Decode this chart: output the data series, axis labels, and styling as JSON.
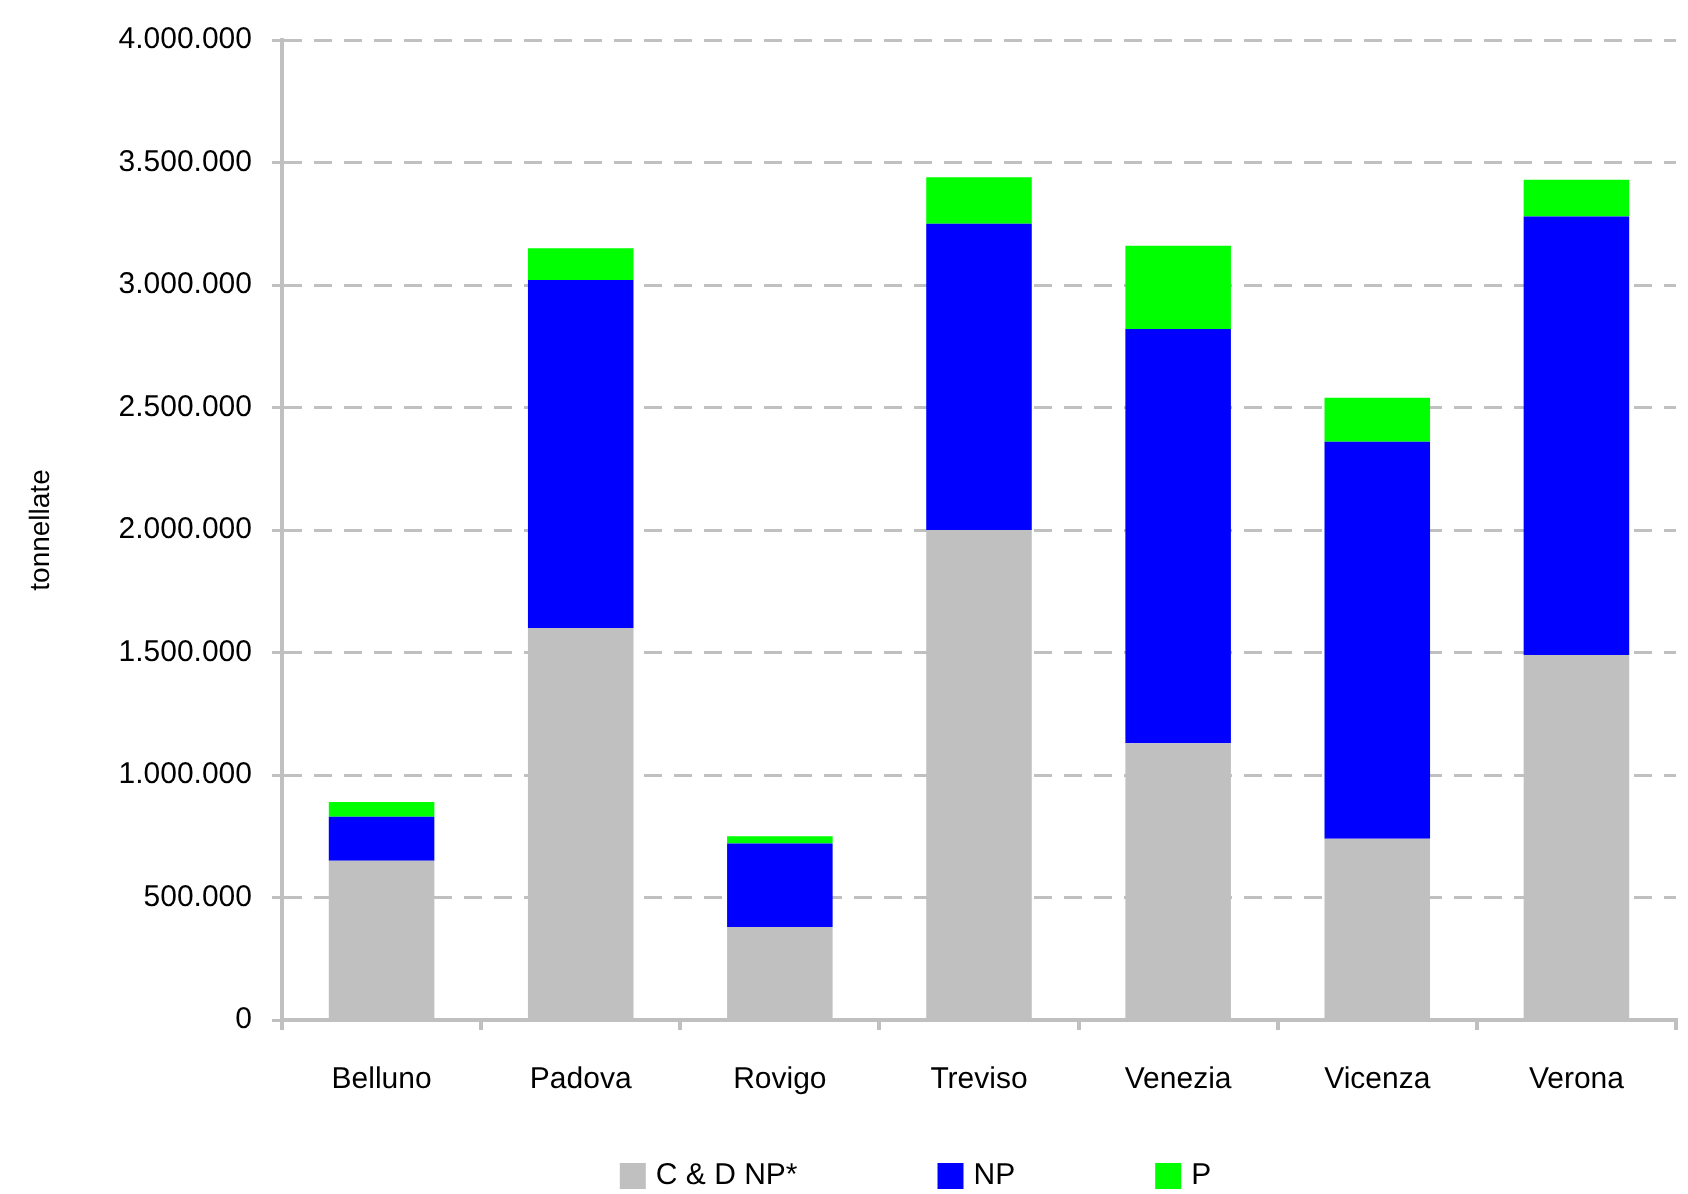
{
  "chart_data": {
    "type": "bar",
    "stacked": true,
    "ylabel": "tonnellate",
    "categories": [
      "Belluno",
      "Padova",
      "Rovigo",
      "Treviso",
      "Venezia",
      "Vicenza",
      "Verona"
    ],
    "series": [
      {
        "name": "C & D NP*",
        "color": "#c0c0c0",
        "values": [
          650000,
          1600000,
          380000,
          2000000,
          1130000,
          740000,
          1490000
        ]
      },
      {
        "name": "NP",
        "color": "#0000ff",
        "values": [
          180000,
          1420000,
          340000,
          1250000,
          1690000,
          1620000,
          1790000
        ]
      },
      {
        "name": "P",
        "color": "#00ff00",
        "values": [
          60000,
          130000,
          30000,
          190000,
          340000,
          180000,
          150000
        ]
      }
    ],
    "ylim": [
      0,
      4000000
    ],
    "yticks": [
      {
        "value": 0,
        "label": "0"
      },
      {
        "value": 500000,
        "label": "500.000"
      },
      {
        "value": 1000000,
        "label": "1.000.000"
      },
      {
        "value": 1500000,
        "label": "1.500.000"
      },
      {
        "value": 2000000,
        "label": "2.000.000"
      },
      {
        "value": 2500000,
        "label": "2.500.000"
      },
      {
        "value": 3000000,
        "label": "3.000.000"
      },
      {
        "value": 3500000,
        "label": "3.500.000"
      },
      {
        "value": 4000000,
        "label": "4.000.000"
      }
    ],
    "grid": "y",
    "legend": "bottom"
  }
}
